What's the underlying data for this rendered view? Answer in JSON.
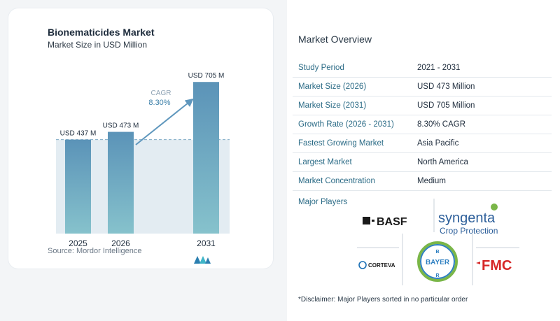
{
  "chart_data": {
    "type": "bar",
    "title": "Bionematicides Market",
    "subtitle": "Market Size in USD Million",
    "categories": [
      "2025",
      "2026",
      "2031"
    ],
    "values": [
      437,
      473,
      705
    ],
    "data_labels": [
      "USD 437 M",
      "USD 473 M",
      "USD 705 M"
    ],
    "annotation": {
      "label": "CAGR",
      "value": "8.30%"
    },
    "ylim": [
      0,
      800
    ],
    "grid": false,
    "colors": {
      "bar_top": "#5b93b8",
      "bar_bottom": "#86c2cc",
      "band": "#e3ecf2",
      "reference_line": "#7fa9c6",
      "arrow": "#5f97bd"
    }
  },
  "source": "Source:  Mordor Intelligence",
  "overview": {
    "title": "Market Overview",
    "rows": [
      {
        "key": "Study Period",
        "value": "2021 - 2031"
      },
      {
        "key": "Market Size (2026)",
        "value": "USD 473 Million"
      },
      {
        "key": "Market Size (2031)",
        "value": "USD 705 Million"
      },
      {
        "key": "Growth Rate (2026 - 2031)",
        "value": "8.30% CAGR"
      },
      {
        "key": "Fastest Growing Market",
        "value": "Asia Pacific"
      },
      {
        "key": "Largest Market",
        "value": "North America"
      },
      {
        "key": "Market Concentration",
        "value": "Medium"
      }
    ]
  },
  "major_players": {
    "label": "Major Players",
    "logos": {
      "basf": "BASF",
      "syngenta": "syngenta",
      "syngenta_sub": "Crop Protection",
      "corteva": "CORTEVA",
      "bayer": "BAYER",
      "fmc": "FMC"
    }
  },
  "disclaimer": "*Disclaimer: Major Players sorted in no particular order"
}
